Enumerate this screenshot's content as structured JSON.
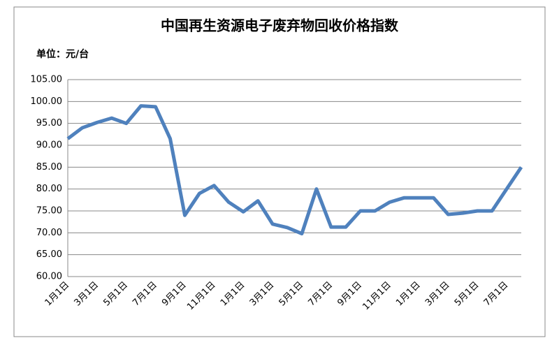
{
  "chart_data": {
    "type": "line",
    "title": "中国再生资源电子废弃物回收价格指数",
    "subtitle": "单位：元/台",
    "categories": [
      "1月1日",
      null,
      "3月1日",
      null,
      "5月1日",
      null,
      "7月1日",
      null,
      "9月1日",
      null,
      "11月1日",
      null,
      "1月1日",
      null,
      "3月1日",
      null,
      "5月1日",
      null,
      "7月1日",
      null,
      "9月1日",
      null,
      "11月1日",
      null,
      "1月1日",
      null,
      "3月1日",
      null,
      "5月1日",
      null,
      "7月1日",
      null
    ],
    "series": [
      {
        "color": "#4f81bd",
        "values": [
          91.5,
          94,
          95.2,
          96.2,
          95,
          99,
          98.8,
          91.5,
          74,
          79,
          80.8,
          77,
          74.8,
          77.3,
          72,
          71.2,
          69.8,
          80,
          71.3,
          71.3,
          75,
          75,
          77,
          78,
          78,
          78,
          74.2,
          74.5,
          75,
          75,
          80,
          85
        ]
      }
    ],
    "ylim": [
      60,
      105
    ],
    "yticks": [
      {
        "value": 60,
        "label": "60.00"
      },
      {
        "value": 65,
        "label": "65.00"
      },
      {
        "value": 70,
        "label": "70.00"
      },
      {
        "value": 75,
        "label": "75.00"
      },
      {
        "value": 80,
        "label": "80.00"
      },
      {
        "value": 85,
        "label": "85.00"
      },
      {
        "value": 90,
        "label": "90.00"
      },
      {
        "value": 95,
        "label": "95.00"
      },
      {
        "value": 100,
        "label": "100.00"
      },
      {
        "value": 105,
        "label": "105.00"
      }
    ],
    "grid": true
  }
}
